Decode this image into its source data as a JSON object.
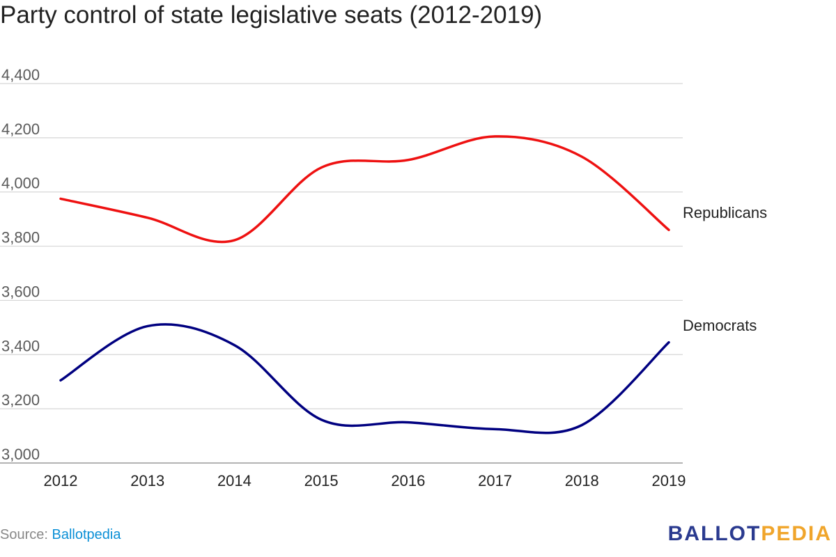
{
  "chart_data": {
    "type": "line",
    "title": "Party control of state legislative seats (2012-2019)",
    "xlabel": "",
    "ylabel": "",
    "x": [
      2012,
      2013,
      2014,
      2015,
      2016,
      2017,
      2018,
      2019
    ],
    "x_tick_labels": [
      "2012",
      "2013",
      "2014",
      "2015",
      "2016",
      "2017",
      "2018",
      "2019"
    ],
    "y_tick_labels": [
      "3,000",
      "3,200",
      "3,400",
      "3,600",
      "3,800",
      "4,000",
      "4,200",
      "4,400"
    ],
    "y_ticks": [
      3000,
      3200,
      3400,
      3600,
      3800,
      4000,
      4200,
      4400
    ],
    "ylim": [
      3000,
      4400
    ],
    "grid": true,
    "legend": "inline labels at line ends",
    "series": [
      {
        "name": "Republicans",
        "color": "#ee1111",
        "values": [
          3975,
          3905,
          3822,
          4090,
          4118,
          4205,
          4130,
          3860
        ]
      },
      {
        "name": "Democrats",
        "color": "#000080",
        "values": [
          3305,
          3505,
          3435,
          3160,
          3150,
          3125,
          3140,
          3445
        ]
      }
    ]
  },
  "footer": {
    "source_prefix": "Source: ",
    "source_link": "Ballotpedia"
  },
  "brand": {
    "part1": "BALLOT",
    "part2": "PEDIA"
  }
}
